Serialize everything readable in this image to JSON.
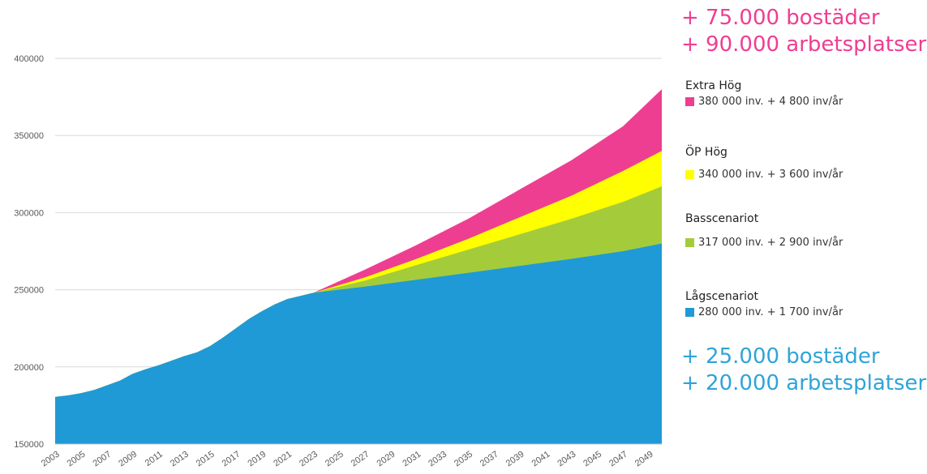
{
  "headlines": {
    "top_line1": "+ 75.000 bostäder",
    "top_line2": "+ 90.000 arbetsplatser",
    "top_color": "#ee3e92",
    "bottom_line1": "+ 25.000 bostäder",
    "bottom_line2": "+ 20.000 arbetsplatser",
    "bottom_color": "#2fa4d8"
  },
  "legend": [
    {
      "name": "Extra Hög",
      "detail": "380 000 inv.  + 4 800 inv/år",
      "color": "#ee3e92"
    },
    {
      "name": "ÖP Hög",
      "detail": "340 000 inv. + 3 600 inv/år",
      "color": "#ffff00"
    },
    {
      "name": "Basscenariot",
      "detail": "317 000 inv. + 2 900 inv/år",
      "color": "#a4cc3a"
    },
    {
      "name": "Lågscenariot",
      "detail": "280 000 inv. + 1 700 inv/år",
      "color": "#1f9ad6"
    }
  ],
  "chart_data": {
    "type": "area",
    "title": "",
    "xlabel": "",
    "ylabel": "",
    "ylim": [
      150000,
      400000
    ],
    "yticks": [
      150000,
      200000,
      250000,
      300000,
      350000,
      400000
    ],
    "xlim": [
      2003,
      2050
    ],
    "xticks": [
      "2003",
      "2005",
      "2007",
      "2009",
      "2011",
      "2013",
      "2015",
      "2017",
      "2019",
      "2021",
      "2023",
      "2025",
      "2027",
      "2029",
      "2031",
      "2033",
      "2035",
      "2037",
      "2039",
      "2041",
      "2043",
      "2045",
      "2047",
      "2049"
    ],
    "grid": "horizontal",
    "history": {
      "x": [
        2003,
        2004,
        2005,
        2006,
        2007,
        2008,
        2009,
        2010,
        2011,
        2012,
        2013,
        2014,
        2015,
        2016,
        2017,
        2018,
        2019,
        2020,
        2021,
        2022,
        2023
      ],
      "y": [
        180500,
        181500,
        183000,
        185000,
        188000,
        191000,
        195500,
        198500,
        201000,
        204000,
        207000,
        209500,
        213500,
        219000,
        225000,
        231000,
        236000,
        240500,
        244000,
        246000,
        248000
      ]
    },
    "series": [
      {
        "name": "Extra Hög",
        "color": "#ee3e92",
        "x": [
          2023,
          2027,
          2031,
          2035,
          2039,
          2043,
          2047,
          2050
        ],
        "y": [
          248000,
          263000,
          279000,
          296000,
          315000,
          334000,
          356000,
          380000
        ]
      },
      {
        "name": "ÖP Hög",
        "color": "#ffff00",
        "x": [
          2023,
          2027,
          2031,
          2035,
          2039,
          2043,
          2047,
          2050
        ],
        "y": [
          248000,
          258000,
          270000,
          283000,
          297000,
          311000,
          327000,
          340000
        ]
      },
      {
        "name": "Basscenariot",
        "color": "#a4cc3a",
        "x": [
          2023,
          2027,
          2031,
          2035,
          2039,
          2043,
          2047,
          2050
        ],
        "y": [
          248000,
          256000,
          266000,
          276000,
          286000,
          296000,
          307000,
          317000
        ]
      },
      {
        "name": "Lågscenariot",
        "color": "#1f9ad6",
        "x": [
          2023,
          2027,
          2031,
          2035,
          2039,
          2043,
          2047,
          2050
        ],
        "y": [
          248000,
          252000,
          256500,
          261000,
          265500,
          270000,
          275000,
          280000
        ]
      }
    ]
  }
}
